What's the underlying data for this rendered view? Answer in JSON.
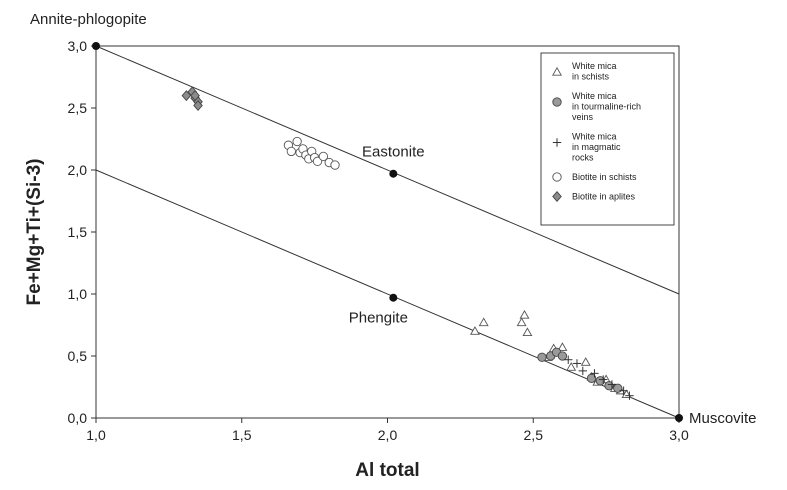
{
  "chart_data": {
    "type": "scatter",
    "title": "",
    "xlabel": "Al total",
    "ylabel": "Fe+Mg+Ti+(Si-3)",
    "xlim": [
      1.0,
      3.0
    ],
    "ylim": [
      0.0,
      3.0
    ],
    "x_ticks": [
      "1,0",
      "1,5",
      "2,0",
      "2,5",
      "3,0"
    ],
    "y_ticks": [
      "0,0",
      "0,5",
      "1,0",
      "1,5",
      "2,0",
      "2,5",
      "3,0"
    ],
    "grid": false,
    "legend_position": "top-right",
    "reference_lines": [
      {
        "x": [
          1.0,
          3.0
        ],
        "y": [
          3.0,
          1.0
        ]
      },
      {
        "x": [
          1.0,
          3.0
        ],
        "y": [
          2.0,
          0.0
        ]
      }
    ],
    "end_members": [
      {
        "label": "Annite-phlogopite",
        "x": 1.0,
        "y": 3.0
      },
      {
        "label": "Eastonite",
        "x": 2.02,
        "y": 1.97
      },
      {
        "label": "Phengite",
        "x": 2.02,
        "y": 0.97
      },
      {
        "label": "Muscovite",
        "x": 3.0,
        "y": 0.0
      }
    ],
    "series": [
      {
        "name": "White mica in schists",
        "legend_lines": [
          "White mica",
          "in schists"
        ],
        "marker": "triangle-open",
        "x": [
          2.3,
          2.33,
          2.46,
          2.47,
          2.48,
          2.55,
          2.57,
          2.6,
          2.63,
          2.68,
          2.7,
          2.72,
          2.75,
          2.78,
          2.8,
          2.82
        ],
        "y": [
          0.7,
          0.77,
          0.77,
          0.83,
          0.69,
          0.49,
          0.56,
          0.57,
          0.41,
          0.45,
          0.33,
          0.29,
          0.31,
          0.24,
          0.22,
          0.19
        ]
      },
      {
        "name": "White mica in tourmaline-rich veins",
        "legend_lines": [
          "White mica",
          "in tourmaline-rich",
          "veins"
        ],
        "marker": "circle-grey",
        "x": [
          2.53,
          2.56,
          2.58,
          2.6,
          2.7,
          2.73,
          2.76,
          2.79
        ],
        "y": [
          0.49,
          0.5,
          0.53,
          0.5,
          0.32,
          0.3,
          0.26,
          0.24
        ]
      },
      {
        "name": "White mica in magmatic rocks",
        "legend_lines": [
          "White mica",
          "in magmatic",
          "rocks"
        ],
        "marker": "plus",
        "x": [
          2.62,
          2.65,
          2.67,
          2.71,
          2.74,
          2.77,
          2.81,
          2.83
        ],
        "y": [
          0.47,
          0.44,
          0.38,
          0.36,
          0.31,
          0.27,
          0.22,
          0.18
        ]
      },
      {
        "name": "Biotite in schists",
        "legend_lines": [
          "Biotite in schists"
        ],
        "marker": "circle-open",
        "x": [
          1.66,
          1.67,
          1.69,
          1.7,
          1.71,
          1.72,
          1.73,
          1.74,
          1.75,
          1.76,
          1.78,
          1.8,
          1.82
        ],
        "y": [
          2.2,
          2.15,
          2.23,
          2.14,
          2.17,
          2.12,
          2.09,
          2.15,
          2.1,
          2.07,
          2.11,
          2.06,
          2.04
        ]
      },
      {
        "name": "Biotite in aplites",
        "legend_lines": [
          "Biotite in aplites"
        ],
        "marker": "diamond-grey",
        "x": [
          1.31,
          1.33,
          1.34,
          1.35,
          1.35,
          1.34
        ],
        "y": [
          2.6,
          2.63,
          2.58,
          2.55,
          2.52,
          2.6
        ]
      }
    ]
  }
}
